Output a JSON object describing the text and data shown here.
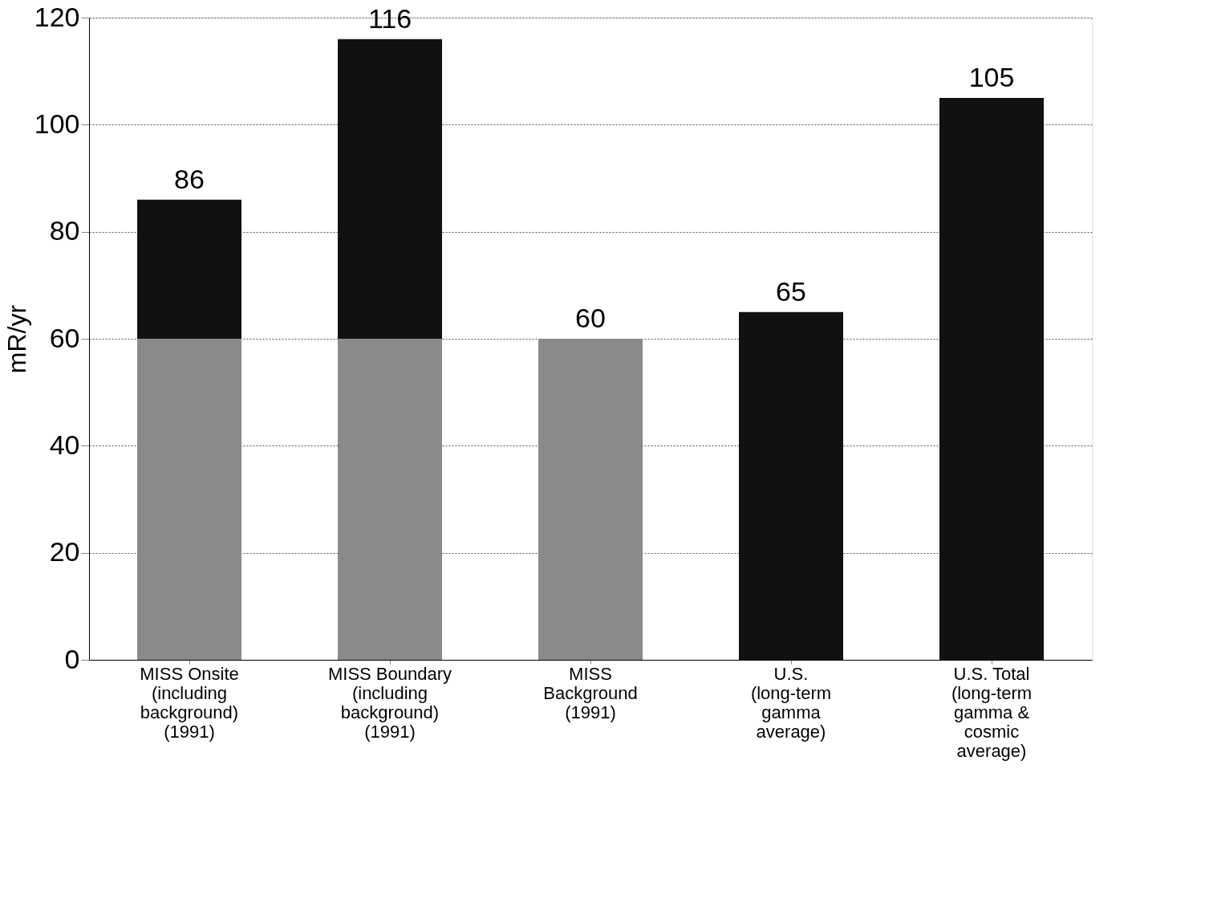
{
  "chart_data": {
    "type": "bar",
    "stacked": true,
    "ylabel": "mR/yr",
    "categories": [
      "MISS Onsite\n(including\nbackground)\n(1991)",
      "MISS Boundary\n(including\nbackground)\n(1991)",
      "MISS\nBackground\n(1991)",
      "U.S.\n(long-term\ngamma\naverage)",
      "U.S. Total\n(long-term\ngamma &\ncosmic\naverage)"
    ],
    "series": [
      {
        "color": "#8a8a8a",
        "values": [
          60,
          60,
          60,
          null,
          null
        ]
      },
      {
        "color": "#111111",
        "values": [
          26,
          56,
          null,
          65,
          105
        ]
      }
    ],
    "totals": [
      "86",
      "116",
      "60",
      "65",
      "105"
    ],
    "ylim": [
      0,
      120
    ],
    "yticks": [
      0,
      20,
      40,
      60,
      80,
      100,
      120
    ],
    "grid": "y",
    "legend": false
  }
}
